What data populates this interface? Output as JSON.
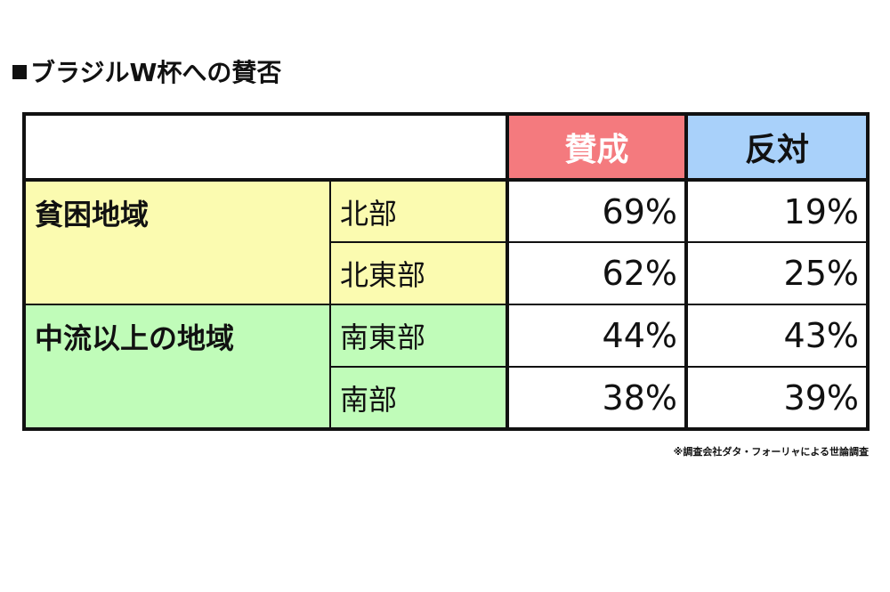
{
  "title": "ブラジルW杯への賛否",
  "chart_data": {
    "type": "table",
    "columns": [
      "賛成",
      "反対"
    ],
    "groups": [
      {
        "name": "貧困地域",
        "rows": [
          {
            "label": "北部",
            "values": [
              "69%",
              "19%"
            ]
          },
          {
            "label": "北東部",
            "values": [
              "62%",
              "25%"
            ]
          }
        ]
      },
      {
        "name": "中流以上の地域",
        "rows": [
          {
            "label": "南東部",
            "values": [
              "44%",
              "43%"
            ]
          },
          {
            "label": "南部",
            "values": [
              "38%",
              "39%"
            ]
          }
        ]
      }
    ]
  },
  "colors": {
    "yes_header": "#f47a7e",
    "no_header": "#a9d1fa",
    "poor_region": "#fbfbb0",
    "middle_region": "#c0fcb9"
  },
  "note": "※調査会社ダタ・フォーリャによる世論調査"
}
